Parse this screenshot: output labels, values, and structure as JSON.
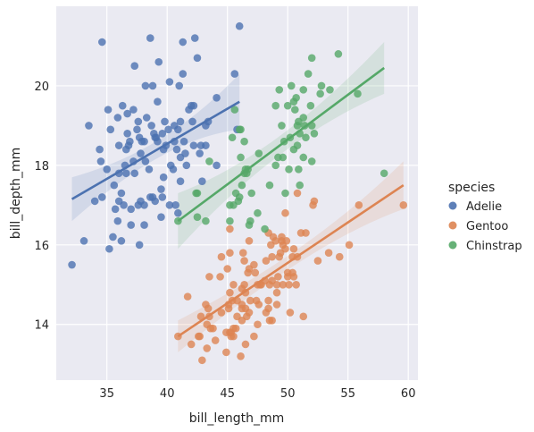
{
  "chart_data": {
    "type": "scatter",
    "xlabel": "bill_length_mm",
    "ylabel": "bill_depth_mm",
    "xlim": [
      30.8,
      60.8
    ],
    "ylim": [
      12.6,
      22.0
    ],
    "xticks": [
      35,
      40,
      45,
      50,
      55,
      60
    ],
    "yticks": [
      14,
      16,
      18,
      20
    ],
    "grid": true,
    "legend_title": "species",
    "legend_placement": "right",
    "series": [
      {
        "name": "Adelie",
        "color": "#4c72b0",
        "regression": {
          "x": [
            32.1,
            46.0
          ],
          "y": [
            17.15,
            19.6
          ],
          "band_lower": [
            16.6,
            18.9
          ],
          "band_upper": [
            17.7,
            20.3
          ]
        },
        "points": [
          [
            32.1,
            15.5
          ],
          [
            33.1,
            16.1
          ],
          [
            33.5,
            19.0
          ],
          [
            34.0,
            17.1
          ],
          [
            34.4,
            18.4
          ],
          [
            34.5,
            18.1
          ],
          [
            34.6,
            21.1
          ],
          [
            34.6,
            17.2
          ],
          [
            35.0,
            17.9
          ],
          [
            35.1,
            19.4
          ],
          [
            35.2,
            15.9
          ],
          [
            35.3,
            18.9
          ],
          [
            35.5,
            16.2
          ],
          [
            35.6,
            17.5
          ],
          [
            35.7,
            16.9
          ],
          [
            35.9,
            19.2
          ],
          [
            35.9,
            16.6
          ],
          [
            36.0,
            17.8
          ],
          [
            36.0,
            18.5
          ],
          [
            36.0,
            17.1
          ],
          [
            36.2,
            16.1
          ],
          [
            36.2,
            17.3
          ],
          [
            36.3,
            19.5
          ],
          [
            36.4,
            17.0
          ],
          [
            36.5,
            18.0
          ],
          [
            36.6,
            17.8
          ],
          [
            36.6,
            18.4
          ],
          [
            36.7,
            19.3
          ],
          [
            36.7,
            18.8
          ],
          [
            36.8,
            18.5
          ],
          [
            36.9,
            18.6
          ],
          [
            37.0,
            16.9
          ],
          [
            37.0,
            16.5
          ],
          [
            37.2,
            18.1
          ],
          [
            37.2,
            19.4
          ],
          [
            37.3,
            17.8
          ],
          [
            37.3,
            20.5
          ],
          [
            37.5,
            18.9
          ],
          [
            37.6,
            19.1
          ],
          [
            37.6,
            17.0
          ],
          [
            37.7,
            18.7
          ],
          [
            37.7,
            16.0
          ],
          [
            37.8,
            18.3
          ],
          [
            37.8,
            17.1
          ],
          [
            37.9,
            18.6
          ],
          [
            38.1,
            18.6
          ],
          [
            38.1,
            17.0
          ],
          [
            38.1,
            16.5
          ],
          [
            38.2,
            18.1
          ],
          [
            38.2,
            20.0
          ],
          [
            38.3,
            19.2
          ],
          [
            38.5,
            17.9
          ],
          [
            38.6,
            21.2
          ],
          [
            38.6,
            17.2
          ],
          [
            38.7,
            19.0
          ],
          [
            38.8,
            17.2
          ],
          [
            38.8,
            20.0
          ],
          [
            38.9,
            18.8
          ],
          [
            39.0,
            17.1
          ],
          [
            39.0,
            18.7
          ],
          [
            39.1,
            18.7
          ],
          [
            39.2,
            19.6
          ],
          [
            39.2,
            18.6
          ],
          [
            39.3,
            20.6
          ],
          [
            39.5,
            17.4
          ],
          [
            39.5,
            16.7
          ],
          [
            39.6,
            18.8
          ],
          [
            39.6,
            17.2
          ],
          [
            39.7,
            18.4
          ],
          [
            39.7,
            17.7
          ],
          [
            39.8,
            19.1
          ],
          [
            39.9,
            18.5
          ],
          [
            40.1,
            18.9
          ],
          [
            40.2,
            17.0
          ],
          [
            40.2,
            20.1
          ],
          [
            40.3,
            18.0
          ],
          [
            40.5,
            17.9
          ],
          [
            40.6,
            18.6
          ],
          [
            40.6,
            19.0
          ],
          [
            40.7,
            17.0
          ],
          [
            40.8,
            18.4
          ],
          [
            40.9,
            16.8
          ],
          [
            40.9,
            18.9
          ],
          [
            41.0,
            20.0
          ],
          [
            41.1,
            18.2
          ],
          [
            41.1,
            19.1
          ],
          [
            41.1,
            17.6
          ],
          [
            41.3,
            20.3
          ],
          [
            41.3,
            21.1
          ],
          [
            41.4,
            18.6
          ],
          [
            41.5,
            18.3
          ],
          [
            41.6,
            18.0
          ],
          [
            41.8,
            19.4
          ],
          [
            42.0,
            19.5
          ],
          [
            42.1,
            19.1
          ],
          [
            42.2,
            18.5
          ],
          [
            42.2,
            19.5
          ],
          [
            42.3,
            21.2
          ],
          [
            42.5,
            20.7
          ],
          [
            42.7,
            18.3
          ],
          [
            42.8,
            18.5
          ],
          [
            42.9,
            17.6
          ],
          [
            43.2,
            19.0
          ],
          [
            43.2,
            18.5
          ],
          [
            43.4,
            19.1
          ],
          [
            44.1,
            19.7
          ],
          [
            44.1,
            18.0
          ],
          [
            45.6,
            20.3
          ],
          [
            45.8,
            18.9
          ],
          [
            46.0,
            21.5
          ]
        ]
      },
      {
        "name": "Gentoo",
        "color": "#dd8452",
        "regression": {
          "x": [
            40.9,
            59.6
          ],
          "y": [
            13.7,
            17.5
          ],
          "band_lower": [
            13.3,
            16.9
          ],
          "band_upper": [
            14.1,
            18.1
          ]
        },
        "points": [
          [
            40.9,
            13.7
          ],
          [
            41.7,
            14.7
          ],
          [
            42.0,
            13.5
          ],
          [
            42.6,
            13.7
          ],
          [
            42.7,
            13.7
          ],
          [
            42.8,
            14.2
          ],
          [
            42.9,
            13.1
          ],
          [
            43.2,
            14.5
          ],
          [
            43.3,
            13.4
          ],
          [
            43.3,
            14.0
          ],
          [
            43.4,
            14.4
          ],
          [
            43.5,
            14.2
          ],
          [
            43.5,
            15.2
          ],
          [
            43.6,
            13.9
          ],
          [
            43.8,
            13.9
          ],
          [
            44.0,
            13.6
          ],
          [
            44.4,
            15.2
          ],
          [
            44.5,
            14.3
          ],
          [
            44.5,
            15.7
          ],
          [
            44.9,
            13.3
          ],
          [
            44.9,
            13.8
          ],
          [
            45.0,
            15.4
          ],
          [
            45.1,
            14.4
          ],
          [
            45.1,
            14.5
          ],
          [
            45.2,
            13.8
          ],
          [
            45.2,
            14.8
          ],
          [
            45.2,
            15.8
          ],
          [
            45.2,
            16.4
          ],
          [
            45.3,
            13.7
          ],
          [
            45.3,
            13.8
          ],
          [
            45.4,
            14.6
          ],
          [
            45.5,
            13.7
          ],
          [
            45.5,
            13.9
          ],
          [
            45.5,
            15.0
          ],
          [
            45.7,
            13.9
          ],
          [
            45.8,
            14.2
          ],
          [
            45.8,
            14.6
          ],
          [
            46.1,
            13.2
          ],
          [
            46.2,
            14.1
          ],
          [
            46.2,
            14.4
          ],
          [
            46.2,
            14.5
          ],
          [
            46.2,
            14.9
          ],
          [
            46.3,
            15.8
          ],
          [
            46.4,
            15.0
          ],
          [
            46.4,
            15.6
          ],
          [
            46.5,
            13.5
          ],
          [
            46.5,
            14.4
          ],
          [
            46.5,
            14.8
          ],
          [
            46.6,
            14.2
          ],
          [
            46.7,
            15.3
          ],
          [
            46.8,
            14.3
          ],
          [
            46.8,
            15.4
          ],
          [
            46.8,
            16.1
          ],
          [
            46.9,
            14.6
          ],
          [
            47.2,
            13.7
          ],
          [
            47.2,
            15.5
          ],
          [
            47.3,
            15.3
          ],
          [
            47.4,
            14.6
          ],
          [
            47.5,
            14.0
          ],
          [
            47.5,
            15.0
          ],
          [
            47.6,
            14.5
          ],
          [
            47.7,
            15.0
          ],
          [
            47.8,
            15.0
          ],
          [
            48.1,
            15.1
          ],
          [
            48.2,
            14.3
          ],
          [
            48.2,
            15.6
          ],
          [
            48.4,
            14.4
          ],
          [
            48.4,
            14.6
          ],
          [
            48.4,
            16.3
          ],
          [
            48.5,
            14.1
          ],
          [
            48.5,
            15.0
          ],
          [
            48.6,
            16.0
          ],
          [
            48.7,
            14.1
          ],
          [
            48.7,
            15.1
          ],
          [
            48.7,
            15.7
          ],
          [
            48.8,
            16.2
          ],
          [
            49.0,
            16.1
          ],
          [
            49.1,
            14.5
          ],
          [
            49.1,
            14.8
          ],
          [
            49.1,
            15.0
          ],
          [
            49.2,
            15.2
          ],
          [
            49.3,
            15.7
          ],
          [
            49.4,
            15.8
          ],
          [
            49.5,
            16.1
          ],
          [
            49.5,
            16.2
          ],
          [
            49.6,
            15.0
          ],
          [
            49.6,
            16.0
          ],
          [
            49.8,
            15.9
          ],
          [
            49.8,
            16.8
          ],
          [
            49.9,
            16.1
          ],
          [
            50.0,
            15.2
          ],
          [
            50.0,
            15.3
          ],
          [
            50.1,
            15.0
          ],
          [
            50.2,
            14.3
          ],
          [
            50.4,
            15.3
          ],
          [
            50.4,
            15.7
          ],
          [
            50.5,
            15.2
          ],
          [
            50.5,
            15.9
          ],
          [
            50.7,
            15.0
          ],
          [
            50.8,
            15.7
          ],
          [
            50.8,
            17.3
          ],
          [
            51.1,
            16.3
          ],
          [
            51.3,
            14.2
          ],
          [
            51.5,
            16.3
          ],
          [
            52.1,
            17.0
          ],
          [
            52.2,
            17.1
          ],
          [
            52.5,
            15.6
          ],
          [
            53.4,
            15.8
          ],
          [
            54.3,
            15.7
          ],
          [
            55.1,
            16.0
          ],
          [
            55.9,
            17.0
          ],
          [
            59.6,
            17.0
          ]
        ]
      },
      {
        "name": "Chinstrap",
        "color": "#55a868",
        "regression": {
          "x": [
            40.9,
            58.0
          ],
          "y": [
            16.6,
            20.45
          ],
          "band_lower": [
            15.9,
            19.8
          ],
          "band_upper": [
            17.3,
            21.1
          ]
        },
        "points": [
          [
            40.9,
            16.6
          ],
          [
            42.4,
            17.3
          ],
          [
            42.5,
            16.7
          ],
          [
            42.5,
            17.3
          ],
          [
            43.2,
            16.6
          ],
          [
            43.5,
            18.1
          ],
          [
            45.2,
            16.6
          ],
          [
            45.2,
            17.0
          ],
          [
            45.4,
            18.7
          ],
          [
            45.5,
            17.0
          ],
          [
            45.6,
            19.4
          ],
          [
            45.7,
            17.3
          ],
          [
            45.9,
            17.1
          ],
          [
            46.0,
            17.2
          ],
          [
            46.0,
            18.9
          ],
          [
            46.1,
            18.2
          ],
          [
            46.2,
            17.5
          ],
          [
            46.4,
            17.8
          ],
          [
            46.4,
            18.6
          ],
          [
            46.5,
            17.9
          ],
          [
            46.6,
            17.8
          ],
          [
            46.7,
            17.9
          ],
          [
            46.8,
            16.5
          ],
          [
            46.9,
            16.6
          ],
          [
            47.0,
            17.3
          ],
          [
            47.5,
            16.8
          ],
          [
            48.1,
            16.4
          ],
          [
            49.0,
            19.5
          ],
          [
            48.5,
            17.5
          ],
          [
            49.2,
            18.2
          ],
          [
            49.5,
            19.0
          ],
          [
            49.6,
            18.2
          ],
          [
            49.7,
            18.6
          ],
          [
            49.0,
            18.0
          ],
          [
            49.3,
            19.9
          ],
          [
            50.0,
            19.5
          ],
          [
            50.1,
            17.9
          ],
          [
            50.2,
            18.7
          ],
          [
            50.3,
            20.0
          ],
          [
            50.5,
            18.4
          ],
          [
            50.5,
            19.6
          ],
          [
            50.6,
            19.4
          ],
          [
            50.7,
            19.7
          ],
          [
            50.8,
            18.5
          ],
          [
            50.8,
            19.0
          ],
          [
            50.9,
            17.9
          ],
          [
            50.9,
            19.1
          ],
          [
            51.0,
            18.8
          ],
          [
            51.3,
            18.2
          ],
          [
            51.3,
            19.2
          ],
          [
            51.3,
            19.9
          ],
          [
            51.4,
            19.0
          ],
          [
            51.5,
            18.7
          ],
          [
            51.7,
            20.3
          ],
          [
            51.9,
            19.5
          ],
          [
            52.0,
            18.1
          ],
          [
            52.0,
            19.0
          ],
          [
            52.0,
            20.7
          ],
          [
            52.2,
            18.8
          ],
          [
            52.7,
            19.8
          ],
          [
            52.8,
            20.0
          ],
          [
            53.5,
            19.9
          ],
          [
            54.2,
            20.8
          ],
          [
            55.8,
            19.8
          ],
          [
            58.0,
            17.8
          ],
          [
            46.1,
            18.9
          ],
          [
            49.8,
            17.3
          ],
          [
            51.0,
            17.5
          ],
          [
            47.6,
            18.3
          ]
        ]
      }
    ]
  }
}
